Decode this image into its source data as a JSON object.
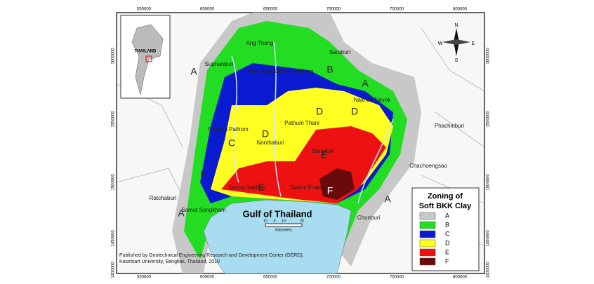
{
  "map": {
    "grid_labels_x": [
      550000,
      600000,
      650000,
      700000,
      750000,
      800000
    ],
    "grid_labels_y": [
      1600000,
      1550000,
      1500000,
      1450000,
      1400000
    ],
    "inset_label": "THAILAND",
    "places": [
      "Ang Thong",
      "Saraburi",
      "Suphanburi",
      "Phra Nakhon Si Ayutthaya",
      "Nakhon Nayok",
      "Pathum Thani",
      "Nakhon Pathom",
      "Nonthaburi",
      "Bangkok",
      "Phachinburi",
      "Chachoengsao",
      "Ratchaburi",
      "Samut Sakhon",
      "Samut Prakarn",
      "Samut Songkham",
      "Chonburi"
    ],
    "zone_labels": [
      "A",
      "A",
      "A",
      "A",
      "B",
      "B",
      "C",
      "D",
      "D",
      "D",
      "E",
      "E",
      "F"
    ],
    "sea_label": "Gulf of Thailand",
    "scale": {
      "ticks": [
        "10",
        "0",
        "10",
        "20"
      ],
      "unit": "Kilometers"
    },
    "compass": {
      "n": "N",
      "s": "S",
      "e": "E",
      "w": "W"
    },
    "legend": {
      "title_lines": [
        "Zoning of",
        "Soft BKK Clay"
      ],
      "items": [
        {
          "label": "A",
          "color": "#c8c8c8"
        },
        {
          "label": "B",
          "color": "#22dd22"
        },
        {
          "label": "C",
          "color": "#0a1ad0"
        },
        {
          "label": "D",
          "color": "#ffff22"
        },
        {
          "label": "E",
          "color": "#ee1111"
        },
        {
          "label": "F",
          "color": "#6a0a0a"
        }
      ]
    },
    "credit": [
      "Published by Geotechnical Engineering Research and Development Center (GERD),",
      "Kasetsart University, Bangkok, Thailand, 2010"
    ]
  }
}
